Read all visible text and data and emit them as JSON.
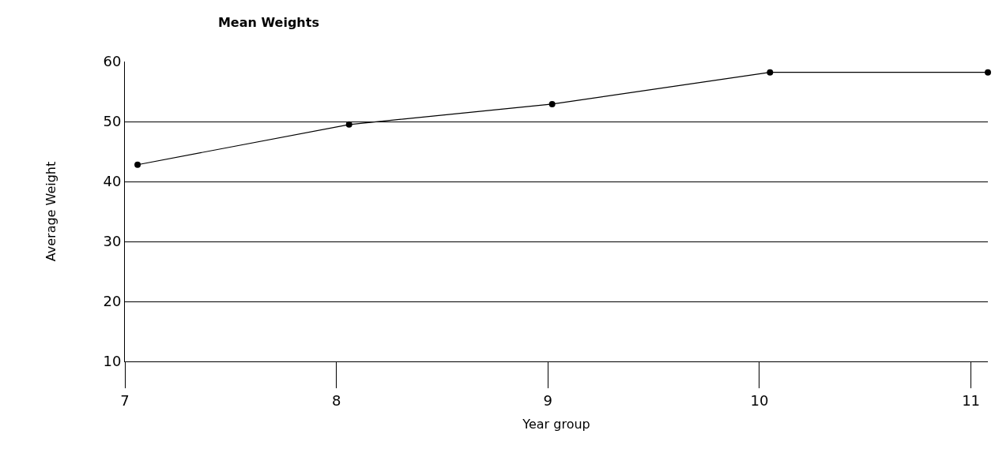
{
  "chart_data": {
    "type": "line",
    "title": "Mean Weights",
    "xlabel": "Year group",
    "ylabel": "Average Weight",
    "x": [
      7.06,
      8.06,
      9.02,
      10.05,
      11.08
    ],
    "series": [
      {
        "color": "#000000",
        "values": [
          42.8,
          49.5,
          52.9,
          58.2,
          58.2
        ]
      }
    ],
    "xlim": [
      7,
      11.08
    ],
    "xticks": [
      7,
      8,
      9,
      10,
      11
    ],
    "ylim": [
      10,
      60
    ],
    "yticks": [
      10,
      20,
      30,
      40,
      50,
      60
    ],
    "grid": "y",
    "legend": false,
    "marker": "circle",
    "line_style": "solid"
  }
}
